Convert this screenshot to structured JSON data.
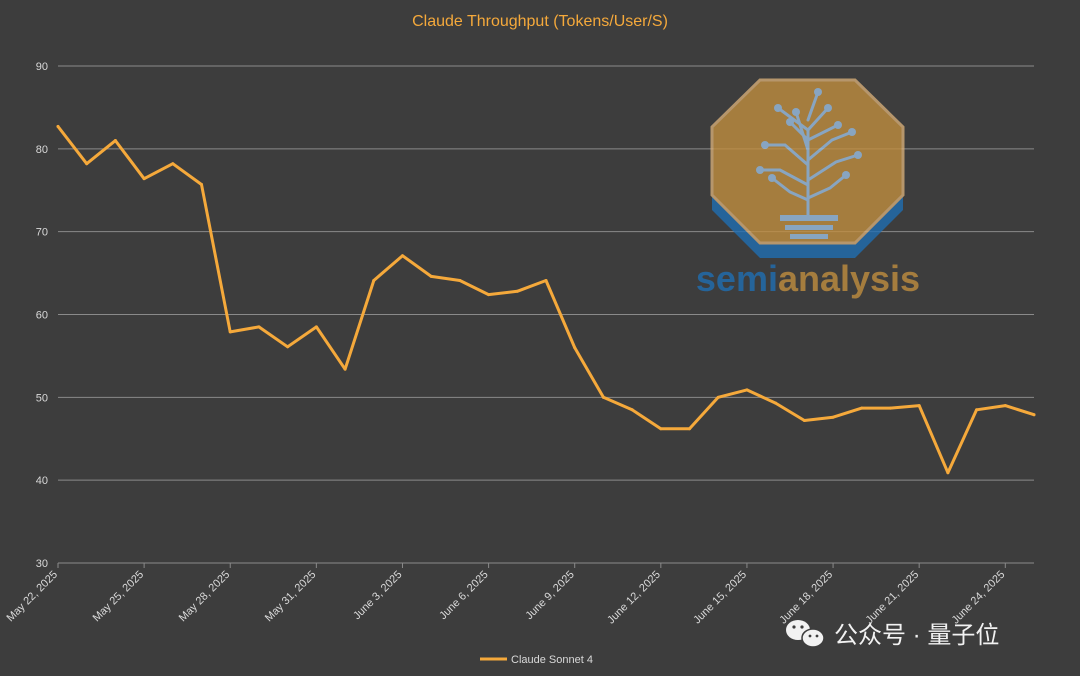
{
  "chart_data": {
    "type": "line",
    "title": "Claude Throughput (Tokens/User/S)",
    "xlabel": "",
    "ylabel": "",
    "ylim": [
      30,
      90
    ],
    "y_ticks": [
      30,
      40,
      50,
      60,
      70,
      80,
      90
    ],
    "grid": true,
    "legend_position": "bottom-center",
    "x": [
      "2025-05-22",
      "2025-05-23",
      "2025-05-24",
      "2025-05-25",
      "2025-05-26",
      "2025-05-27",
      "2025-05-28",
      "2025-05-29",
      "2025-05-30",
      "2025-05-31",
      "2025-06-01",
      "2025-06-02",
      "2025-06-03",
      "2025-06-04",
      "2025-06-05",
      "2025-06-06",
      "2025-06-07",
      "2025-06-08",
      "2025-06-09",
      "2025-06-10",
      "2025-06-11",
      "2025-06-12",
      "2025-06-13",
      "2025-06-14",
      "2025-06-15",
      "2025-06-16",
      "2025-06-17",
      "2025-06-18",
      "2025-06-19",
      "2025-06-20",
      "2025-06-21",
      "2025-06-22",
      "2025-06-23",
      "2025-06-24",
      "2025-06-25"
    ],
    "x_tick_labels": [
      "May 22, 2025",
      "May 25, 2025",
      "May 28, 2025",
      "May 31, 2025",
      "June 3, 2025",
      "June 6, 2025",
      "June 9, 2025",
      "June 12, 2025",
      "June 15, 2025",
      "June 18, 2025",
      "June 21, 2025",
      "June 24, 2025"
    ],
    "series": [
      {
        "name": "Claude Sonnet 4",
        "color": "#f5a93b",
        "values": [
          82.7,
          78.2,
          81.0,
          76.4,
          78.2,
          75.7,
          57.9,
          58.5,
          56.1,
          58.5,
          53.4,
          64.1,
          67.1,
          64.6,
          64.1,
          62.4,
          62.8,
          64.1,
          56.0,
          50.0,
          48.5,
          46.2,
          46.2,
          50.0,
          50.9,
          49.3,
          47.2,
          47.6,
          48.7,
          48.7,
          49.0,
          40.9,
          48.5,
          49.0,
          47.9
        ]
      }
    ]
  },
  "watermark": {
    "brand_part1": "semi",
    "brand_part2": "analysis",
    "icon": "circuit-tree-logo"
  },
  "credit": {
    "text": "公众号 · 量子位",
    "icon": "wechat-icon"
  },
  "colors": {
    "background": "#3d3d3d",
    "grid": "#8a8a8a",
    "axis_text": "#d9d9d9",
    "title": "#f5a93b",
    "line": "#f5a93b",
    "logo_blue": "#1f6fb5",
    "logo_gold": "#c38f3f"
  }
}
